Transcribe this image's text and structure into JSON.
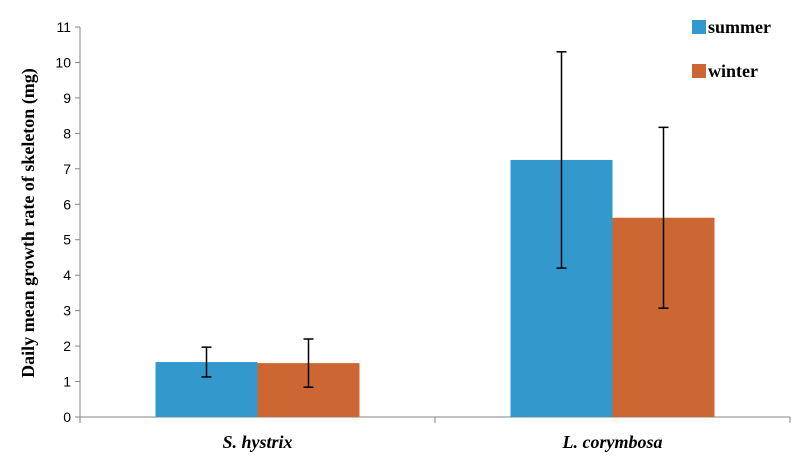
{
  "chart_data": {
    "type": "bar",
    "title": "",
    "xlabel": "",
    "ylabel": "Daily mean growth rate of skeleton (mg)",
    "ylim": [
      0,
      11
    ],
    "yticks": [
      "0",
      "1",
      "2",
      "3",
      "4",
      "5",
      "6",
      "7",
      "8",
      "9",
      "10",
      "11"
    ],
    "categories": [
      "S. hystrix",
      "L. corymbosa"
    ],
    "series": [
      {
        "name": "summer",
        "color": "#3399cc",
        "values": [
          1.55,
          7.25
        ],
        "errors": [
          0.42,
          3.05
        ]
      },
      {
        "name": "winter",
        "color": "#cc6633",
        "values": [
          1.52,
          5.62
        ],
        "errors": [
          0.68,
          2.55
        ]
      }
    ],
    "grid": false,
    "legend_position": "top-right",
    "error_bars": true
  }
}
